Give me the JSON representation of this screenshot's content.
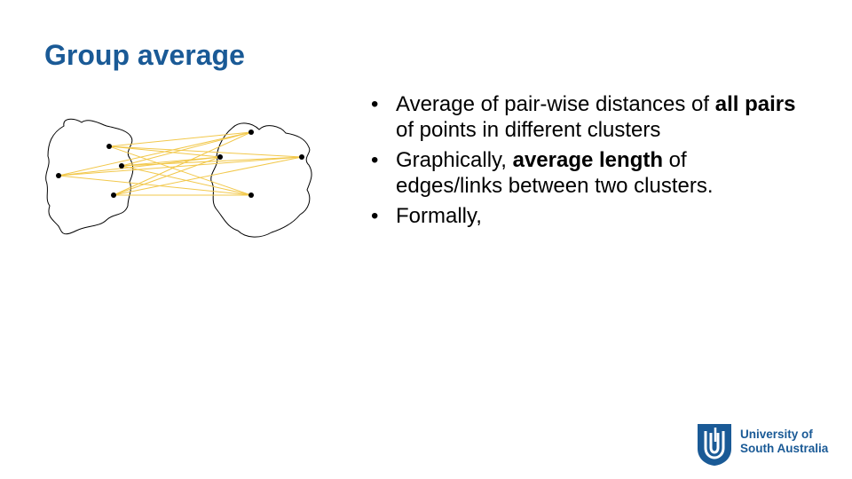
{
  "slide": {
    "title": "Group average"
  },
  "bullets": [
    {
      "parts": [
        {
          "t": "Average of pair-wise distances of "
        },
        {
          "t": "all pairs",
          "b": true
        },
        {
          "t": " of points in different clusters"
        }
      ]
    },
    {
      "parts": [
        {
          "t": "Graphically, "
        },
        {
          "t": "average length",
          "b": true
        },
        {
          "t": " of edges/links between two clusters."
        }
      ]
    },
    {
      "parts": [
        {
          "t": "Formally,"
        }
      ]
    }
  ],
  "bullet_glyph": "•",
  "diagram": {
    "edge_color": "#f2c84b",
    "point_color": "#000000",
    "outline_color": "#000000",
    "left_cluster_points": 4,
    "right_cluster_points": 4
  },
  "logo": {
    "line1": "University of",
    "line2": "South Australia",
    "color": "#1a5a96",
    "icon": "unisa-shield-icon"
  }
}
